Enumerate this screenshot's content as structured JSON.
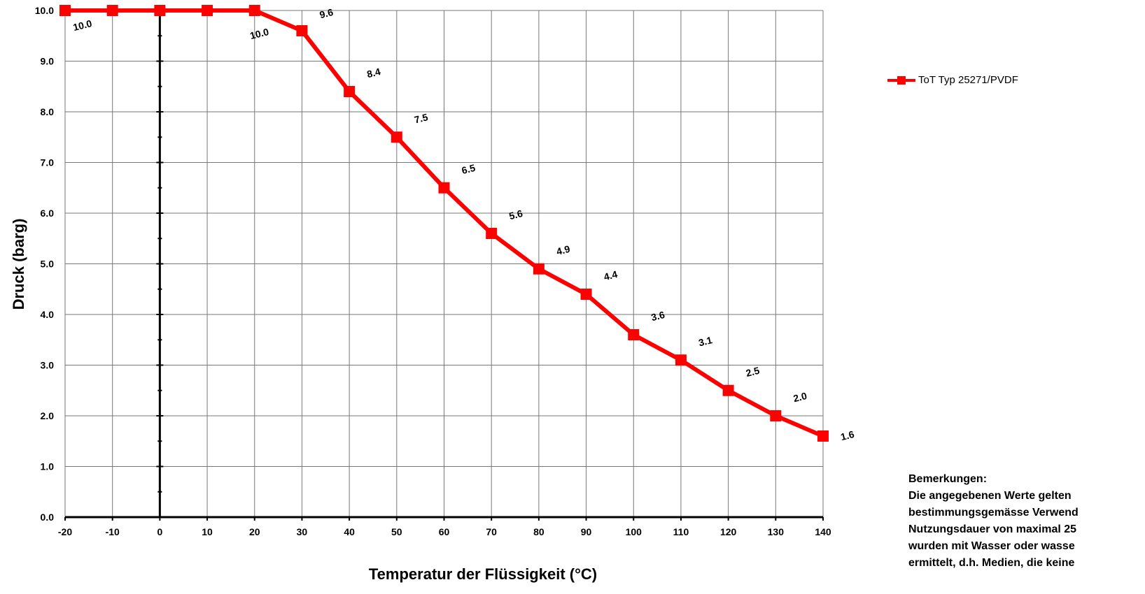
{
  "chart_data": {
    "type": "line",
    "xlabel": "Temperatur der Flüssigkeit (°C)",
    "ylabel": "Druck (barg)",
    "xlim": [
      -20,
      140
    ],
    "ylim": [
      0,
      10
    ],
    "x_ticks": [
      "-20",
      "-10",
      "0",
      "10",
      "20",
      "30",
      "40",
      "50",
      "60",
      "70",
      "80",
      "90",
      "100",
      "110",
      "120",
      "130",
      "140"
    ],
    "y_ticks": [
      "0.0",
      "1.0",
      "2.0",
      "3.0",
      "4.0",
      "5.0",
      "6.0",
      "7.0",
      "8.0",
      "9.0",
      "10.0"
    ],
    "grid": true,
    "legend_position": "top-right",
    "series": [
      {
        "name": "ToT Typ 25271/PVDF",
        "color": "#ff0000",
        "x": [
          -20,
          -10,
          0,
          10,
          20,
          30,
          40,
          50,
          60,
          70,
          80,
          90,
          100,
          110,
          120,
          130,
          140
        ],
        "y": [
          10.0,
          10.0,
          10.0,
          10.0,
          10.0,
          9.6,
          8.4,
          7.5,
          6.5,
          5.6,
          4.9,
          4.4,
          3.6,
          3.1,
          2.5,
          2.0,
          1.6
        ],
        "data_labels": [
          {
            "x": -20,
            "y": 10.0,
            "text": "10.0"
          },
          {
            "x": 20,
            "y": 10.0,
            "text": "10.0"
          },
          {
            "x": 30,
            "y": 9.6,
            "text": "9.6"
          },
          {
            "x": 40,
            "y": 8.4,
            "text": "8.4"
          },
          {
            "x": 50,
            "y": 7.5,
            "text": "7.5"
          },
          {
            "x": 60,
            "y": 6.5,
            "text": "6.5"
          },
          {
            "x": 70,
            "y": 5.6,
            "text": "5.6"
          },
          {
            "x": 80,
            "y": 4.9,
            "text": "4.9"
          },
          {
            "x": 90,
            "y": 4.4,
            "text": "4.4"
          },
          {
            "x": 100,
            "y": 3.6,
            "text": "3.6"
          },
          {
            "x": 110,
            "y": 3.1,
            "text": "3.1"
          },
          {
            "x": 120,
            "y": 2.5,
            "text": "2.5"
          },
          {
            "x": 130,
            "y": 2.0,
            "text": "2.0"
          },
          {
            "x": 140,
            "y": 1.6,
            "text": "1.6"
          }
        ]
      }
    ]
  },
  "remarks": {
    "title": "Bemerkungen:",
    "lines": [
      "Die angegebenen Werte gelten",
      "bestimmungsgemässe Verwend",
      "Nutzungsdauer von maximal 25",
      "wurden mit Wasser oder wasse",
      "ermittelt, d.h. Medien, die keine"
    ]
  }
}
